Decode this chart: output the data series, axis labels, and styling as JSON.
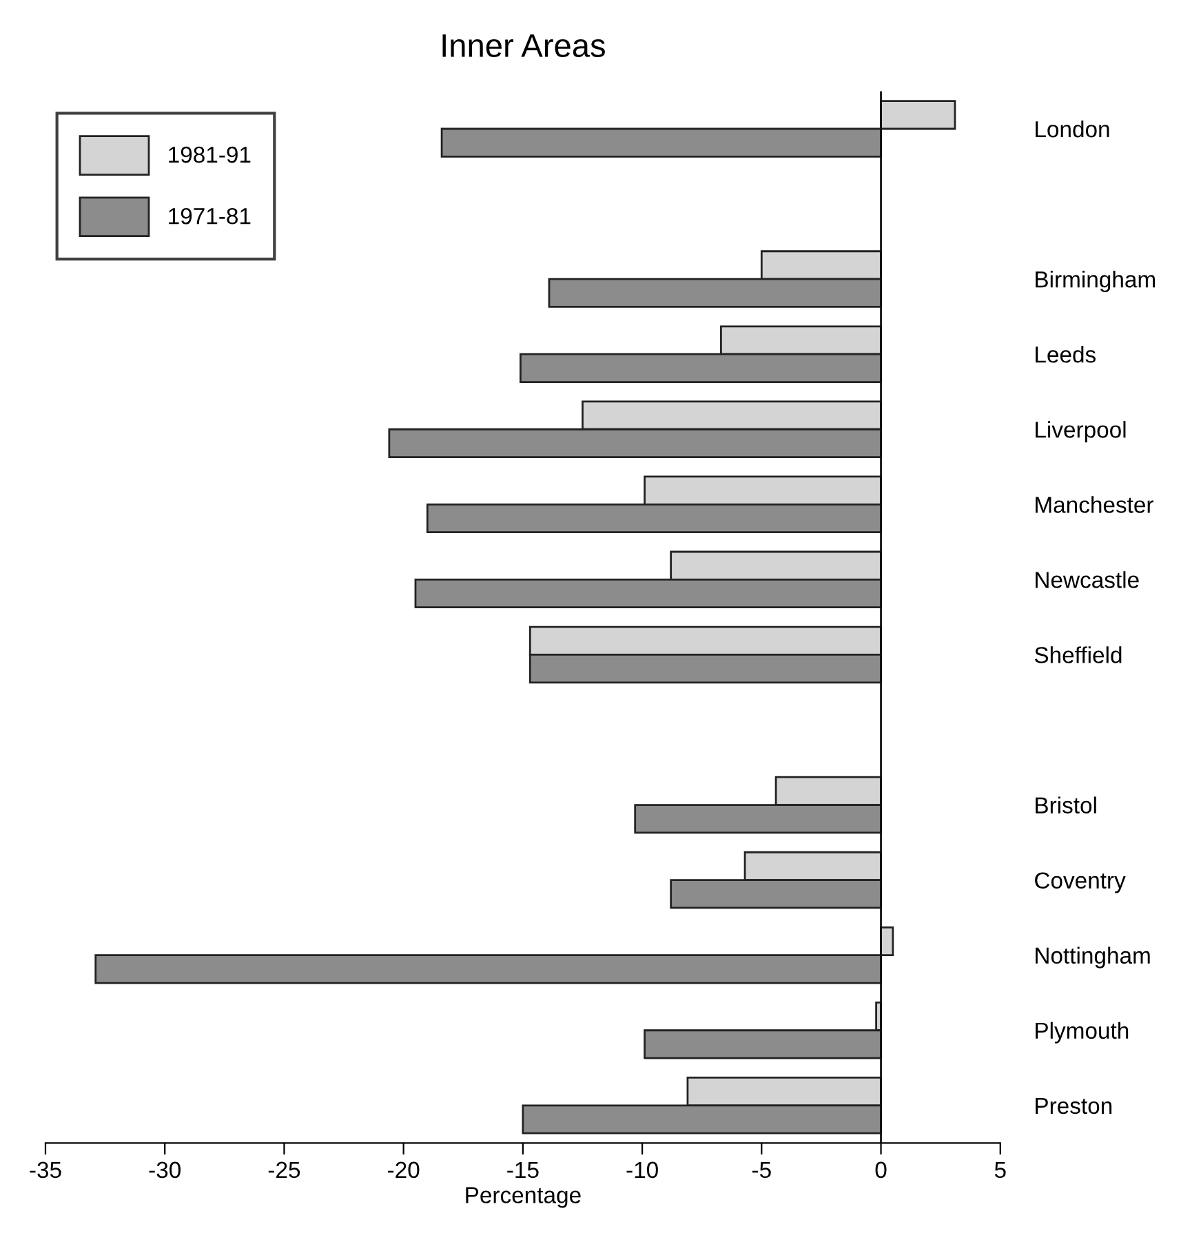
{
  "chart_data": {
    "type": "bar",
    "orientation": "horizontal",
    "title": "Inner Areas",
    "xlabel": "Percentage",
    "categories": [
      "London",
      null,
      "Birmingham",
      "Leeds",
      "Liverpool",
      "Manchester",
      "Newcastle",
      "Sheffield",
      null,
      "Bristol",
      "Coventry",
      "Nottingham",
      "Plymouth",
      "Preston"
    ],
    "series": [
      {
        "name": "1981-91",
        "color": "#d4d4d4",
        "values": [
          3.1,
          null,
          -5.0,
          -6.7,
          -12.5,
          -9.9,
          -8.8,
          -14.7,
          null,
          -4.4,
          -5.7,
          0.5,
          -0.2,
          -8.1
        ]
      },
      {
        "name": "1971-81",
        "color": "#8c8c8c",
        "values": [
          -18.4,
          null,
          -13.9,
          -15.1,
          -20.6,
          -19.0,
          -19.5,
          -14.7,
          null,
          -10.3,
          -8.8,
          -32.9,
          -9.9,
          -15.0
        ]
      }
    ],
    "xlim": [
      -35,
      5
    ],
    "xticks": [
      -35,
      -30,
      -25,
      -20,
      -15,
      -10,
      -5,
      0,
      5
    ],
    "ref_lines": [
      {
        "axis": "x",
        "value": 0,
        "color": "#111111"
      }
    ],
    "grid": false,
    "legend": "top left"
  }
}
